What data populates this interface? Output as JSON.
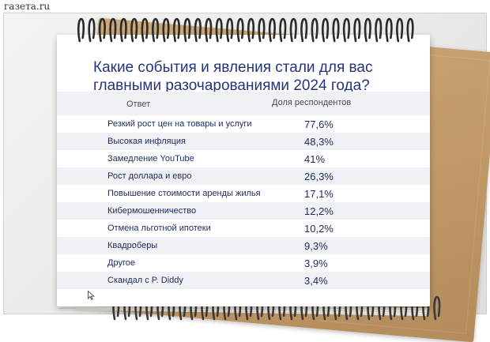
{
  "source": "газета.ru",
  "chart_data": {
    "type": "table",
    "title": "Какие события и явления стали для вас главными разочарованиями 2024 года?",
    "columns": [
      "Ответ",
      "Доля респондентов"
    ],
    "rows": [
      {
        "label": "Резкий рост цен на товары и услуги",
        "value": 77.6,
        "display": "77,6%"
      },
      {
        "label": "Высокая инфляция",
        "value": 48.3,
        "display": "48,3%"
      },
      {
        "label": "Замедление YouTube",
        "value": 41,
        "display": "41%"
      },
      {
        "label": "Рост доллара и евро",
        "value": 26.3,
        "display": "26,3%"
      },
      {
        "label": "Повышение стоимости аренды жилья",
        "value": 17.1,
        "display": "17,1%"
      },
      {
        "label": "Кибермошенничество",
        "value": 12.2,
        "display": "12,2%"
      },
      {
        "label": "Отмена льготной ипотеки",
        "value": 10.2,
        "display": "10,2%"
      },
      {
        "label": "Квадроберы",
        "value": 9.3,
        "display": "9,3%"
      },
      {
        "label": "Другое",
        "value": 3.9,
        "display": "3,9%"
      },
      {
        "label": "Скандал с P. Diddy",
        "value": 3.4,
        "display": "3,4%"
      }
    ]
  },
  "colors": {
    "title": "#26357a",
    "row_text": "#1f2a5c",
    "stripe": "#f0f1f4",
    "kraft": "#c49c6c",
    "ring": "#2a2a2a"
  }
}
